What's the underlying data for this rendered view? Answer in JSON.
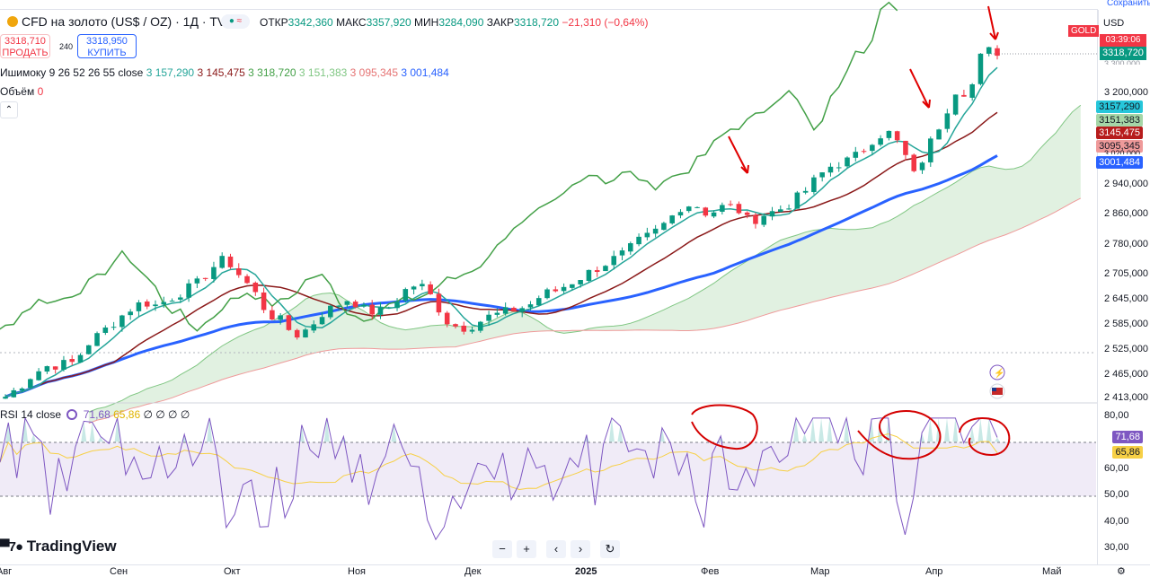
{
  "header": {
    "symbol": "CFD на золото (US$ / OZ) · 1Д · TVC",
    "open_label": "ОТКР",
    "open_value": "3342,360",
    "high_label": "МАКС",
    "high_value": "3357,920",
    "low_label": "МИН",
    "low_value": "3284,090",
    "close_label": "ЗАКР",
    "close_value": "3318,720",
    "change": "−21,310 (−0,64%)"
  },
  "trade": {
    "sell_price": "3318,710",
    "sell_label": "ПРОДАТЬ",
    "spread": "240",
    "buy_price": "3318,950",
    "buy_label": "КУПИТЬ"
  },
  "indicators": {
    "ichimoku_name": "Ишимоку 9 26 52 26 55 close",
    "ichimoku_values": [
      "3 157,290",
      "3 145,475",
      "3 318,720",
      "3 151,383",
      "3 095,345",
      "3 001,484"
    ],
    "volume_name": "Объём",
    "volume_value": "0",
    "rsi_name": "RSI 14 close",
    "rsi_value": "71,68",
    "rsi_ma": "65,86",
    "rsi_extra": "∅ ∅ ∅ ∅"
  },
  "price_axis": {
    "currency": "USD",
    "ticks": [
      "3 200,000",
      "3 020,000",
      "2 940,000",
      "2 860,000",
      "2 780,000",
      "2 705,000",
      "2 645,000",
      "2 585,000",
      "2 525,000",
      "2 465,000",
      "2 413,000"
    ],
    "symbol_badge": "GOLD",
    "countdown": "03:39:06",
    "last_price": "3318,720",
    "top_partial": "3 300,000",
    "pills": [
      "3157,290",
      "3151,383",
      "3145,475",
      "3095,345",
      "3001,484"
    ],
    "rsi_ticks": [
      "80,00",
      "60,00",
      "50,00",
      "40,00",
      "30,00"
    ],
    "rsi_pills": [
      "71,68",
      "65,86"
    ],
    "colors": {
      "up": "#089981",
      "down": "#f23645",
      "conversion": "#26a69a",
      "base": "#8b1a1a",
      "lagging": "#43a047",
      "baseline": "#2962ff"
    }
  },
  "time_axis": [
    "Авг",
    "Сен",
    "Окт",
    "Ноя",
    "Дек",
    "2025",
    "Фев",
    "Мар",
    "Апр",
    "Май"
  ],
  "toolbar": {
    "minus": "−",
    "plus": "+",
    "left": "‹",
    "right": "›",
    "reset": "↻"
  },
  "branding": {
    "logo": "TradingView"
  },
  "top_right_partial": "Сохранить",
  "chart_data": {
    "type": "candlestick",
    "title": "CFD на золото (US$ / OZ) · 1Д · TVC",
    "x": [
      "Авг",
      "Сен",
      "Окт",
      "Ноя",
      "Дек",
      "2025",
      "Фев",
      "Мар",
      "Апр",
      "Май"
    ],
    "ylim": [
      2413,
      3300
    ],
    "close_path": [
      2420,
      2445,
      2480,
      2500,
      2505,
      2510,
      2560,
      2590,
      2620,
      2650,
      2670,
      2660,
      2680,
      2700,
      2720,
      2760,
      2785,
      2740,
      2700,
      2640,
      2620,
      2580,
      2600,
      2640,
      2660,
      2680,
      2650,
      2640,
      2660,
      2700,
      2720,
      2680,
      2620,
      2600,
      2610,
      2630,
      2640,
      2650,
      2660,
      2690,
      2700,
      2720,
      2740,
      2760,
      2780,
      2800,
      2830,
      2850,
      2880,
      2920,
      2930,
      2900,
      2920,
      2920,
      2880,
      2900,
      2910,
      2930,
      2960,
      3000,
      3030,
      3040,
      3060,
      3100,
      3120,
      3080,
      3000,
      3080,
      3150,
      3230,
      3220,
      3340,
      3318.72
    ],
    "series": [
      {
        "name": "RSI 14 close",
        "last": 71.68
      },
      {
        "name": "RSI MA",
        "last": 65.86
      }
    ],
    "rsi_ylim": [
      30,
      80
    ]
  }
}
